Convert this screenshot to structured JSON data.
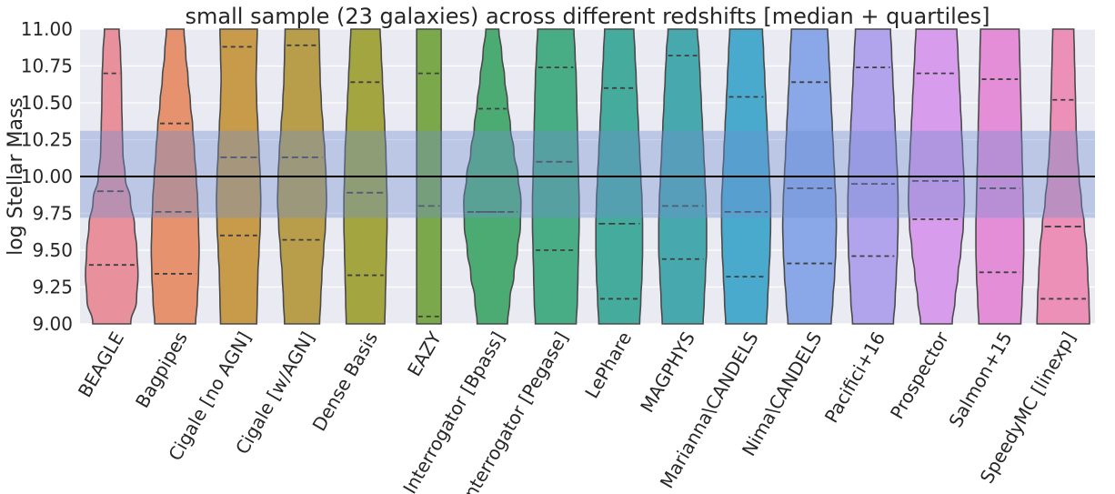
{
  "chart_data": {
    "type": "violin",
    "title": "small sample (23 galaxies) across different redshifts [median + quartiles]",
    "ylabel": "log Stellar Mass",
    "xlabel": "",
    "ylim": [
      9.0,
      11.0
    ],
    "yticks": [
      "9.00",
      "9.25",
      "9.50",
      "9.75",
      "10.00",
      "10.25",
      "10.50",
      "10.75",
      "11.00"
    ],
    "reference_line": 10.0,
    "reference_band": [
      9.72,
      10.31
    ],
    "grid": true,
    "background": "#eaeaf2",
    "series": [
      {
        "name": "BEAGLE",
        "color": "#e8919d",
        "q1": 9.4,
        "median": 9.9,
        "q3": 10.7,
        "widths": [
          0.65,
          0.85,
          0.9,
          0.86,
          0.78,
          0.64,
          0.46,
          0.38,
          0.36,
          0.34,
          0.33,
          0.3,
          0.25
        ]
      },
      {
        "name": "Bagpipes",
        "color": "#e6926f",
        "q1": 9.34,
        "median": 9.76,
        "q3": 10.36,
        "widths": [
          0.7,
          0.76,
          0.8,
          0.82,
          0.8,
          0.77,
          0.72,
          0.66,
          0.6,
          0.52,
          0.44,
          0.36,
          0.3
        ]
      },
      {
        "name": "Cigale [no AGN]",
        "color": "#c79b4a",
        "q1": 9.6,
        "median": 10.13,
        "q3": 10.88,
        "widths": [
          0.62,
          0.64,
          0.66,
          0.7,
          0.74,
          0.76,
          0.74,
          0.7,
          0.66,
          0.62,
          0.6,
          0.62,
          0.64
        ]
      },
      {
        "name": "Cigale [w/AGN]",
        "color": "#b89e4a",
        "q1": 9.57,
        "median": 10.13,
        "q3": 10.89,
        "widths": [
          0.6,
          0.64,
          0.68,
          0.74,
          0.8,
          0.84,
          0.82,
          0.78,
          0.72,
          0.66,
          0.62,
          0.6,
          0.58
        ]
      },
      {
        "name": "Dense Basis",
        "color": "#a3a640",
        "q1": 9.33,
        "median": 9.89,
        "q3": 10.64,
        "widths": [
          0.66,
          0.68,
          0.7,
          0.72,
          0.74,
          0.74,
          0.72,
          0.7,
          0.66,
          0.62,
          0.58,
          0.54,
          0.5
        ]
      },
      {
        "name": "EAZY",
        "color": "#7ba84a",
        "q1": 9.05,
        "median": 9.8,
        "q3": 10.7,
        "widths": [
          0.42,
          0.42,
          0.42,
          0.42,
          0.42,
          0.42,
          0.42,
          0.42,
          0.42,
          0.42,
          0.42,
          0.42,
          0.42
        ]
      },
      {
        "name": "Interrogator [Bpass]",
        "color": "#4cab72",
        "q1": 9.76,
        "median": 9.76,
        "q3": 10.46,
        "widths": [
          0.52,
          0.6,
          0.74,
          0.86,
          0.96,
          0.98,
          0.88,
          0.74,
          0.62,
          0.52,
          0.42,
          0.32,
          0.22
        ]
      },
      {
        "name": "Interrogator [Pegase]",
        "color": "#48ac85",
        "q1": 9.5,
        "median": 10.1,
        "q3": 10.74,
        "widths": [
          0.7,
          0.74,
          0.76,
          0.78,
          0.8,
          0.8,
          0.78,
          0.76,
          0.74,
          0.72,
          0.7,
          0.66,
          0.62
        ]
      },
      {
        "name": "LePhare",
        "color": "#45ab9d",
        "q1": 9.17,
        "median": 9.68,
        "q3": 10.6,
        "widths": [
          0.7,
          0.74,
          0.78,
          0.8,
          0.8,
          0.78,
          0.74,
          0.7,
          0.66,
          0.62,
          0.58,
          0.54,
          0.5
        ]
      },
      {
        "name": "MAGPHYS",
        "color": "#47a9ad",
        "q1": 9.44,
        "median": 9.8,
        "q3": 10.82,
        "widths": [
          0.7,
          0.74,
          0.78,
          0.82,
          0.82,
          0.8,
          0.76,
          0.72,
          0.68,
          0.64,
          0.6,
          0.56,
          0.5
        ]
      },
      {
        "name": "Marianna\\CANDELS",
        "color": "#4aaace",
        "q1": 9.32,
        "median": 9.76,
        "q3": 10.54,
        "widths": [
          0.7,
          0.74,
          0.78,
          0.82,
          0.84,
          0.84,
          0.8,
          0.76,
          0.72,
          0.68,
          0.64,
          0.6,
          0.56
        ]
      },
      {
        "name": "Nima\\CANDELS",
        "color": "#8aa8e8",
        "q1": 9.41,
        "median": 9.92,
        "q3": 10.64,
        "widths": [
          0.74,
          0.8,
          0.86,
          0.9,
          0.92,
          0.9,
          0.86,
          0.82,
          0.78,
          0.74,
          0.7,
          0.66,
          0.62
        ]
      },
      {
        "name": "Pacifici+16",
        "color": "#b2a4ec",
        "q1": 9.46,
        "median": 9.95,
        "q3": 10.74,
        "widths": [
          0.7,
          0.76,
          0.8,
          0.84,
          0.86,
          0.86,
          0.84,
          0.8,
          0.76,
          0.72,
          0.68,
          0.64,
          0.6
        ]
      },
      {
        "name": "Prospector",
        "color": "#d89cec",
        "q1": 9.71,
        "median": 9.97,
        "q3": 10.7,
        "widths": [
          0.54,
          0.64,
          0.74,
          0.84,
          0.92,
          0.96,
          0.94,
          0.9,
          0.86,
          0.82,
          0.78,
          0.74,
          0.7
        ]
      },
      {
        "name": "Salmon+15",
        "color": "#e58ed8",
        "q1": 9.35,
        "median": 9.92,
        "q3": 10.66,
        "widths": [
          0.72,
          0.76,
          0.8,
          0.82,
          0.82,
          0.8,
          0.78,
          0.76,
          0.74,
          0.72,
          0.7,
          0.68,
          0.66
        ]
      },
      {
        "name": "SpeedyMC [linexp]",
        "color": "#ec90b8",
        "q1": 9.17,
        "median": 9.66,
        "q3": 10.52,
        "widths": [
          0.9,
          0.88,
          0.84,
          0.8,
          0.72,
          0.62,
          0.54,
          0.48,
          0.44,
          0.42,
          0.4,
          0.38,
          0.36
        ]
      }
    ]
  }
}
